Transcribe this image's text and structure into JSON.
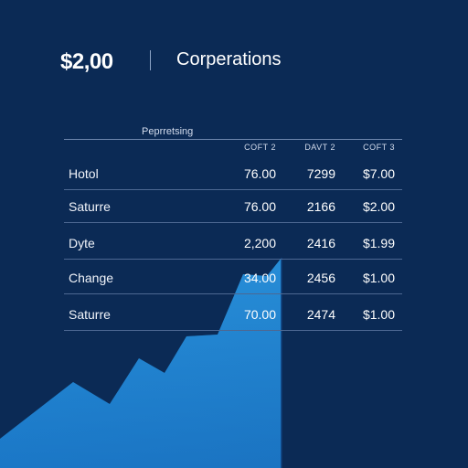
{
  "header": {
    "amount": "$2,00",
    "title": "Corperations"
  },
  "table": {
    "caption": "Peprretsing",
    "columns": [
      "COFT 2",
      "DAVT 2",
      "COFT 3"
    ],
    "rows": [
      {
        "label": "Hotol",
        "values": [
          "76.00",
          "7299",
          "$7.00"
        ]
      },
      {
        "label": "Saturre",
        "values": [
          "76.00",
          "2166",
          "$2.00"
        ]
      },
      {
        "label": "Dyte",
        "values": [
          "2,200",
          "2416",
          "$1.99"
        ]
      },
      {
        "label": "Change",
        "values": [
          "34.00",
          "2456",
          "$1.00"
        ]
      },
      {
        "label": "Saturre",
        "values": [
          "70.00",
          "2474",
          "$1.00"
        ]
      }
    ]
  },
  "colors": {
    "background": "#0b2a55",
    "area_light": "#1f8fdc",
    "area_dark": "#1c6db7"
  }
}
